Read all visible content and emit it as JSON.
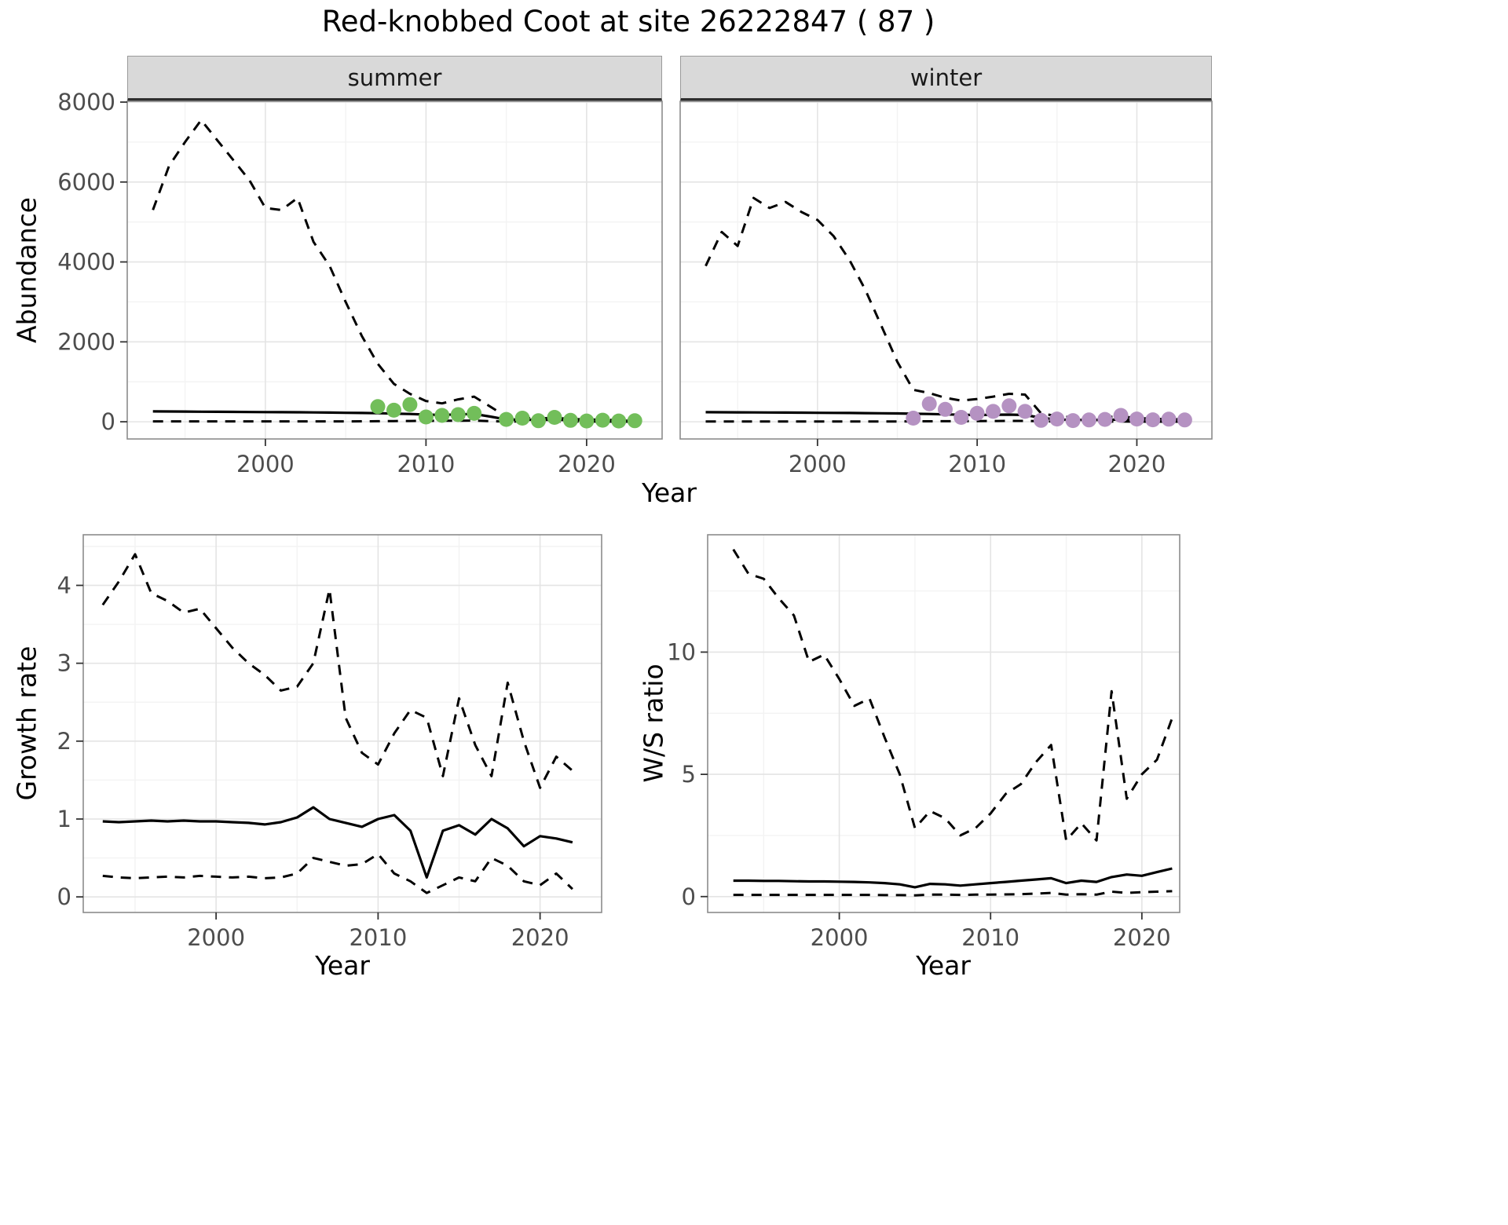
{
  "title": "Red-knobbed Coot at site 26222847 ( 87 )",
  "colors": {
    "summer_point": "#72BE5A",
    "winter_point": "#B592C2",
    "line": "#000000",
    "strip_bg": "#D9D9D9",
    "grid_major": "#E4E4E4",
    "grid_minor": "#F3F3F3",
    "panel_border": "#8C8C8C",
    "tick_text": "#4D4D4D"
  },
  "chart_data": [
    {
      "id": "abundance_summer",
      "type": "line",
      "facet_label": "summer",
      "xlabel": "Year",
      "ylabel": "Abundance",
      "xlim": [
        1991.4,
        2024.7
      ],
      "ylim": [
        -430,
        8020
      ],
      "xticks": [
        2000,
        2010,
        2020
      ],
      "xminor": [
        1995,
        2005,
        2015
      ],
      "yticks": [
        0,
        2000,
        4000,
        6000,
        8000
      ],
      "yminor": [
        1000,
        3000,
        5000,
        7000
      ],
      "grid": true,
      "legend": "none",
      "years": [
        1993,
        1994,
        1995,
        1996,
        1997,
        1998,
        1999,
        2000,
        2001,
        2002,
        2003,
        2004,
        2005,
        2006,
        2007,
        2008,
        2009,
        2010,
        2011,
        2012,
        2013,
        2014,
        2015,
        2016,
        2017,
        2018,
        2019,
        2020,
        2021,
        2022,
        2023
      ],
      "series": [
        {
          "name": "upper_95ci",
          "style": "dashed",
          "values": [
            5300,
            6400,
            7000,
            7550,
            7050,
            6550,
            6050,
            5350,
            5300,
            5600,
            4500,
            3900,
            3000,
            2150,
            1450,
            950,
            700,
            520,
            460,
            560,
            630,
            380,
            130,
            100,
            80,
            100,
            70,
            60,
            50,
            45,
            40
          ]
        },
        {
          "name": "modelled_abundance",
          "style": "solid",
          "values": [
            260,
            258,
            255,
            252,
            250,
            248,
            245,
            242,
            240,
            238,
            235,
            230,
            225,
            220,
            215,
            205,
            195,
            180,
            170,
            185,
            195,
            130,
            60,
            52,
            48,
            52,
            42,
            38,
            32,
            28,
            25
          ]
        },
        {
          "name": "lower_95ci",
          "style": "dashed",
          "values": [
            10,
            10,
            10,
            10,
            10,
            10,
            10,
            10,
            10,
            10,
            10,
            10,
            10,
            12,
            15,
            18,
            20,
            22,
            25,
            28,
            30,
            15,
            8,
            6,
            5,
            6,
            5,
            4,
            4,
            3,
            3
          ]
        }
      ],
      "points": {
        "name": "observed_counts",
        "color_key": "summer_point",
        "years": [
          2007,
          2008,
          2009,
          2010,
          2011,
          2012,
          2013,
          2015,
          2016,
          2017,
          2018,
          2019,
          2020,
          2021,
          2022,
          2023
        ],
        "values": [
          380,
          290,
          430,
          120,
          160,
          180,
          210,
          60,
          90,
          25,
          110,
          35,
          20,
          40,
          20,
          25
        ]
      }
    },
    {
      "id": "abundance_winter",
      "type": "line",
      "facet_label": "winter",
      "xlabel": "Year",
      "ylabel": "Abundance",
      "xlim": [
        1991.4,
        2024.7
      ],
      "ylim": [
        -430,
        8020
      ],
      "xticks": [
        2000,
        2010,
        2020
      ],
      "xminor": [
        1995,
        2005,
        2015
      ],
      "yticks": [
        0,
        2000,
        4000,
        6000,
        8000
      ],
      "yminor": [
        1000,
        3000,
        5000,
        7000
      ],
      "grid": true,
      "legend": "none",
      "years": [
        1993,
        1994,
        1995,
        1996,
        1997,
        1998,
        1999,
        2000,
        2001,
        2002,
        2003,
        2004,
        2005,
        2006,
        2007,
        2008,
        2009,
        2010,
        2011,
        2012,
        2013,
        2014,
        2015,
        2016,
        2017,
        2018,
        2019,
        2020,
        2021,
        2022,
        2023
      ],
      "series": [
        {
          "name": "upper_95ci",
          "style": "dashed",
          "values": [
            3900,
            4750,
            4400,
            5600,
            5350,
            5500,
            5250,
            5050,
            4650,
            4050,
            3300,
            2400,
            1500,
            800,
            720,
            600,
            530,
            570,
            630,
            700,
            680,
            210,
            140,
            110,
            95,
            115,
            135,
            95,
            75,
            65,
            60
          ]
        },
        {
          "name": "modelled_abundance",
          "style": "solid",
          "values": [
            240,
            238,
            236,
            234,
            232,
            230,
            228,
            225,
            222,
            220,
            216,
            212,
            208,
            200,
            195,
            185,
            175,
            170,
            175,
            180,
            170,
            100,
            55,
            48,
            45,
            48,
            55,
            45,
            38,
            32,
            28
          ]
        },
        {
          "name": "lower_95ci",
          "style": "dashed",
          "values": [
            8,
            8,
            8,
            8,
            8,
            8,
            8,
            8,
            8,
            8,
            8,
            8,
            8,
            10,
            12,
            14,
            16,
            18,
            20,
            22,
            22,
            12,
            6,
            5,
            4,
            5,
            6,
            4,
            3,
            3,
            3
          ]
        }
      ],
      "points": {
        "name": "observed_counts",
        "color_key": "winter_point",
        "years": [
          2006,
          2007,
          2008,
          2009,
          2010,
          2011,
          2012,
          2013,
          2014,
          2015,
          2016,
          2017,
          2018,
          2019,
          2020,
          2021,
          2022,
          2023
        ],
        "values": [
          90,
          450,
          310,
          110,
          210,
          260,
          400,
          260,
          35,
          70,
          30,
          45,
          60,
          160,
          70,
          50,
          65,
          45
        ]
      }
    },
    {
      "id": "growth_rate",
      "type": "line",
      "facet_label": "",
      "xlabel": "Year",
      "ylabel": "Growth rate",
      "xlim": [
        1991.8,
        2023.8
      ],
      "ylim": [
        -0.2,
        4.65
      ],
      "xticks": [
        2000,
        2010,
        2020
      ],
      "xminor": [
        1995,
        2005,
        2015
      ],
      "yticks": [
        0,
        1,
        2,
        3,
        4
      ],
      "yminor": [
        0.5,
        1.5,
        2.5,
        3.5,
        4.5
      ],
      "grid": true,
      "legend": "none",
      "years": [
        1993,
        1994,
        1995,
        1996,
        1997,
        1998,
        1999,
        2000,
        2001,
        2002,
        2003,
        2004,
        2005,
        2006,
        2007,
        2008,
        2009,
        2010,
        2011,
        2012,
        2013,
        2014,
        2015,
        2016,
        2017,
        2018,
        2019,
        2020,
        2021,
        2022
      ],
      "series": [
        {
          "name": "upper_95ci",
          "style": "dashed",
          "values": [
            3.75,
            4.05,
            4.4,
            3.9,
            3.8,
            3.65,
            3.7,
            3.45,
            3.2,
            3.0,
            2.85,
            2.65,
            2.7,
            3.0,
            3.95,
            2.3,
            1.85,
            1.7,
            2.1,
            2.4,
            2.3,
            1.55,
            2.55,
            1.95,
            1.55,
            2.75,
            2.0,
            1.4,
            1.8,
            1.62
          ]
        },
        {
          "name": "growth_rate_estimate",
          "style": "solid",
          "values": [
            0.97,
            0.96,
            0.97,
            0.98,
            0.97,
            0.98,
            0.97,
            0.97,
            0.96,
            0.95,
            0.93,
            0.96,
            1.02,
            1.15,
            1.0,
            0.95,
            0.9,
            1.0,
            1.05,
            0.85,
            0.25,
            0.85,
            0.92,
            0.8,
            1.0,
            0.88,
            0.65,
            0.78,
            0.75,
            0.7
          ]
        },
        {
          "name": "lower_95ci",
          "style": "dashed",
          "values": [
            0.27,
            0.25,
            0.24,
            0.25,
            0.26,
            0.25,
            0.27,
            0.26,
            0.25,
            0.26,
            0.24,
            0.25,
            0.3,
            0.5,
            0.45,
            0.4,
            0.42,
            0.55,
            0.3,
            0.2,
            0.05,
            0.15,
            0.25,
            0.2,
            0.5,
            0.4,
            0.2,
            0.15,
            0.3,
            0.1
          ]
        }
      ]
    },
    {
      "id": "ws_ratio",
      "type": "line",
      "facet_label": "",
      "xlabel": "Year",
      "ylabel": "W/S ratio",
      "xlim": [
        1991.3,
        2022.5
      ],
      "ylim": [
        -0.65,
        14.8
      ],
      "xticks": [
        2000,
        2010,
        2020
      ],
      "xminor": [
        1995,
        2005,
        2015
      ],
      "yticks": [
        0,
        5,
        10
      ],
      "yminor": [
        2.5,
        7.5,
        12.5
      ],
      "grid": true,
      "legend": "none",
      "years": [
        1993,
        1994,
        1995,
        1996,
        1997,
        1998,
        1999,
        2000,
        2001,
        2002,
        2003,
        2004,
        2005,
        2006,
        2007,
        2008,
        2009,
        2010,
        2011,
        2012,
        2013,
        2014,
        2015,
        2016,
        2017,
        2018,
        2019,
        2020,
        2021,
        2022
      ],
      "series": [
        {
          "name": "upper_95ci",
          "style": "dashed",
          "values": [
            14.2,
            13.2,
            13.0,
            12.2,
            11.5,
            9.6,
            9.9,
            8.9,
            7.8,
            8.1,
            6.5,
            5.0,
            2.8,
            3.5,
            3.2,
            2.5,
            2.8,
            3.4,
            4.2,
            4.6,
            5.5,
            6.2,
            2.3,
            3.0,
            2.3,
            8.4,
            4.0,
            5.0,
            5.6,
            7.3
          ]
        },
        {
          "name": "ws_ratio_estimate",
          "style": "solid",
          "values": [
            0.65,
            0.65,
            0.64,
            0.64,
            0.63,
            0.62,
            0.62,
            0.61,
            0.6,
            0.58,
            0.55,
            0.5,
            0.38,
            0.52,
            0.5,
            0.45,
            0.5,
            0.55,
            0.6,
            0.65,
            0.7,
            0.75,
            0.55,
            0.65,
            0.6,
            0.8,
            0.9,
            0.85,
            1.0,
            1.15
          ]
        },
        {
          "name": "lower_95ci",
          "style": "dashed",
          "values": [
            0.07,
            0.07,
            0.07,
            0.07,
            0.07,
            0.07,
            0.07,
            0.07,
            0.07,
            0.07,
            0.06,
            0.06,
            0.05,
            0.08,
            0.08,
            0.07,
            0.08,
            0.08,
            0.09,
            0.1,
            0.12,
            0.15,
            0.08,
            0.1,
            0.08,
            0.2,
            0.15,
            0.18,
            0.2,
            0.22
          ]
        }
      ]
    }
  ]
}
